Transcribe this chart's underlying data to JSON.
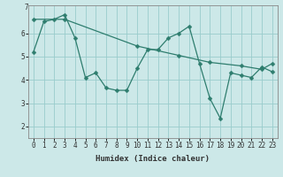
{
  "line1_x": [
    0,
    1,
    2,
    3,
    4,
    5,
    6,
    7,
    8,
    9,
    10,
    11,
    12,
    13,
    14,
    15,
    16,
    17,
    18,
    19,
    20,
    21,
    22,
    23
  ],
  "line1_y": [
    5.2,
    6.5,
    6.6,
    6.8,
    5.8,
    4.1,
    4.3,
    3.65,
    3.55,
    3.55,
    4.5,
    5.3,
    5.3,
    5.8,
    6.0,
    6.3,
    4.7,
    3.2,
    2.35,
    4.3,
    4.2,
    4.1,
    4.55,
    4.35
  ],
  "line2_x": [
    0,
    3,
    10,
    14,
    17,
    20,
    22,
    23
  ],
  "line2_y": [
    6.6,
    6.6,
    5.45,
    5.05,
    4.75,
    4.6,
    4.45,
    4.7
  ],
  "line_color": "#2e7d6e",
  "marker": "D",
  "markersize": 2.5,
  "bg_color": "#cce8e8",
  "grid_color": "#99cccc",
  "xlabel": "Humidex (Indice chaleur)",
  "xlim": [
    -0.5,
    23.5
  ],
  "ylim": [
    1.5,
    7.2
  ],
  "yticks": [
    2,
    3,
    4,
    5,
    6
  ],
  "ytick_labels": [
    "2",
    "3",
    "4",
    "5",
    "6"
  ],
  "xtick_labels": [
    "0",
    "1",
    "2",
    "3",
    "4",
    "5",
    "6",
    "7",
    "8",
    "9",
    "10",
    "11",
    "12",
    "13",
    "14",
    "15",
    "16",
    "17",
    "18",
    "19",
    "20",
    "21",
    "22",
    "23"
  ],
  "label_fontsize": 6.5,
  "tick_fontsize": 5.5
}
